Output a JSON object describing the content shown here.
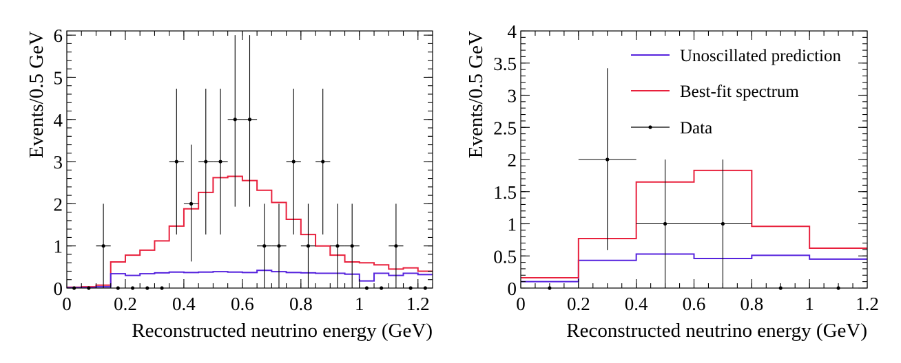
{
  "chart_data": [
    {
      "type": "step",
      "xlabel": "Reconstructed neutrino energy (GeV)",
      "ylabel": "Events/0.5 GeV",
      "xlim": [
        0,
        1.25
      ],
      "ylim": [
        0,
        6.1
      ],
      "xticks": [
        "0",
        "0.2",
        "0.4",
        "0.6",
        "0.8",
        "1",
        "1.2"
      ],
      "yticks": [
        "0",
        "1",
        "2",
        "3",
        "4",
        "5",
        "6"
      ],
      "bin_edges": [
        0,
        0.05,
        0.1,
        0.15,
        0.2,
        0.25,
        0.3,
        0.35,
        0.4,
        0.45,
        0.5,
        0.55,
        0.6,
        0.65,
        0.7,
        0.75,
        0.8,
        0.85,
        0.9,
        0.95,
        1.0,
        1.05,
        1.1,
        1.15,
        1.2,
        1.25
      ],
      "series": [
        {
          "color": "#e8203c",
          "values": [
            0.02,
            0.03,
            0.07,
            0.62,
            0.78,
            0.9,
            1.12,
            1.47,
            1.88,
            2.27,
            2.62,
            2.65,
            2.55,
            2.32,
            2.03,
            1.63,
            1.27,
            1.0,
            0.78,
            0.62,
            0.6,
            0.55,
            0.45,
            0.48,
            0.4
          ]
        },
        {
          "color": "#5522dd",
          "values": [
            0.01,
            0.01,
            0.03,
            0.34,
            0.3,
            0.34,
            0.36,
            0.38,
            0.37,
            0.38,
            0.39,
            0.38,
            0.37,
            0.42,
            0.39,
            0.37,
            0.36,
            0.35,
            0.35,
            0.33,
            0.17,
            0.35,
            0.3,
            0.35,
            0.32
          ]
        }
      ],
      "data_points": {
        "x": [
          0.025,
          0.075,
          0.125,
          0.175,
          0.225,
          0.275,
          0.325,
          0.375,
          0.425,
          0.475,
          0.525,
          0.575,
          0.625,
          0.675,
          0.725,
          0.775,
          0.825,
          0.875,
          0.925,
          0.975,
          1.025,
          1.075,
          1.125,
          1.175,
          1.225
        ],
        "y": [
          0,
          0,
          1,
          0,
          0,
          0,
          0,
          3,
          2,
          3,
          3,
          4,
          4,
          1,
          1,
          3,
          1,
          3,
          1,
          1,
          0,
          0,
          1,
          0,
          0
        ],
        "y_low": [
          0,
          0,
          0.0,
          0,
          0,
          0,
          0,
          1.27,
          0.63,
          1.27,
          1.27,
          1.93,
          1.93,
          0.0,
          0.0,
          1.27,
          0.0,
          1.27,
          0.0,
          0.0,
          0,
          0,
          0.0,
          0,
          0
        ],
        "y_high": [
          0,
          0,
          2.0,
          0,
          0,
          0,
          0,
          4.73,
          3.4,
          4.73,
          4.73,
          6.0,
          6.0,
          2.0,
          2.0,
          4.73,
          2.0,
          4.73,
          2.0,
          2.0,
          0,
          0,
          2.0,
          0,
          0
        ],
        "x_half_width": 0.025
      }
    },
    {
      "type": "step",
      "xlabel": "Reconstructed neutrino energy (GeV)",
      "ylabel": "Events/0.5 GeV",
      "xlim": [
        0,
        1.2
      ],
      "ylim": [
        0,
        4
      ],
      "xticks": [
        "0",
        "0.2",
        "0.4",
        "0.6",
        "0.8",
        "1",
        "1.2"
      ],
      "yticks": [
        "0",
        "0.5",
        "1",
        "1.5",
        "2",
        "2.5",
        "3",
        "3.5",
        "4"
      ],
      "legend_position": "top-right",
      "bin_edges": [
        0,
        0.2,
        0.4,
        0.6,
        0.8,
        1.0,
        1.2
      ],
      "series": [
        {
          "name": "Unoscillated prediction",
          "color": "#5522dd",
          "values": [
            0.1,
            0.43,
            0.53,
            0.46,
            0.51,
            0.45
          ]
        },
        {
          "name": "Best-fit spectrum",
          "color": "#e8203c",
          "values": [
            0.16,
            0.77,
            1.65,
            1.83,
            0.96,
            0.62
          ]
        }
      ],
      "data_points": {
        "name": "Data",
        "x": [
          0.1,
          0.3,
          0.5,
          0.7,
          0.9,
          1.1
        ],
        "y": [
          0,
          2,
          1,
          1,
          0,
          0
        ],
        "y_low": [
          0,
          0.59,
          0.0,
          0.0,
          0,
          0
        ],
        "y_high": [
          0,
          3.42,
          2.0,
          2.0,
          0,
          0
        ],
        "x_half_width": 0.1,
        "show_x_error": [
          false,
          true,
          true,
          true,
          false,
          false
        ]
      }
    }
  ]
}
